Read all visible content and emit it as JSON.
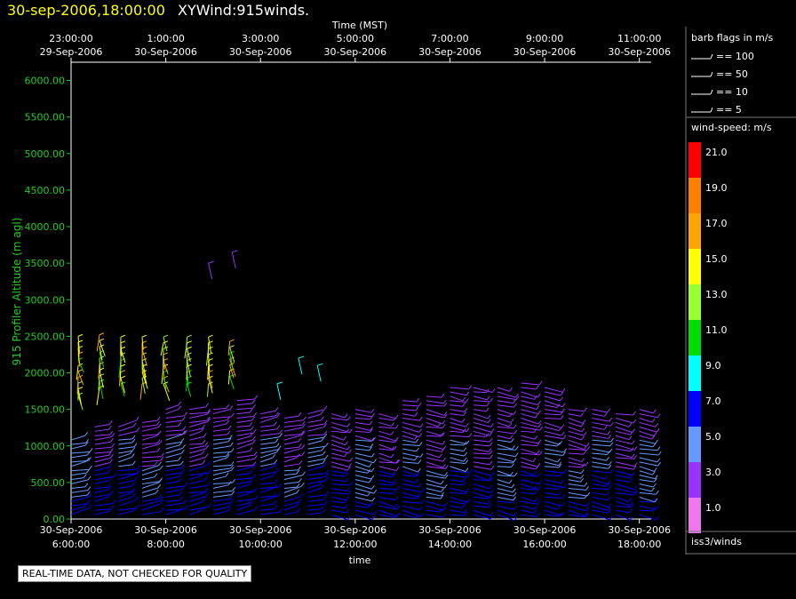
{
  "header": {
    "date": "30-sep-2006,18:00:00",
    "name": "XYWind:915winds."
  },
  "notice": "REAL-TIME DATA, NOT CHECKED FOR QUALITY",
  "legend": {
    "barb_title": "barb flags in m/s",
    "barbs": [
      "== 100",
      "== 50",
      "== 10",
      "== 5"
    ],
    "speed_title": "wind-speed: m/s",
    "speed_scale": [
      {
        "value": "21.0",
        "color": "#ff0000"
      },
      {
        "value": "19.0",
        "color": "#ff7f00"
      },
      {
        "value": "17.0",
        "color": "#ffa500"
      },
      {
        "value": "15.0",
        "color": "#ffff00"
      },
      {
        "value": "13.0",
        "color": "#99ff33"
      },
      {
        "value": "11.0",
        "color": "#00dd00"
      },
      {
        "value": "9.0",
        "color": "#00ffff"
      },
      {
        "value": "7.0",
        "color": "#0000ff"
      },
      {
        "value": "5.0",
        "color": "#6699ff"
      },
      {
        "value": "3.0",
        "color": "#9933ff"
      },
      {
        "value": "1.0",
        "color": "#ee77ee"
      }
    ],
    "source": "iss3/winds"
  },
  "chart_data": {
    "type": "scatter",
    "title": "XYWind:915winds.",
    "xlabel": "time",
    "xlabel_top": "Time (MST)",
    "ylabel": "915 Profiler Altitude (m agl)",
    "ylim": [
      0,
      6250
    ],
    "yticks": [
      "0.00",
      "500.00",
      "1000.00",
      "1500.00",
      "2000.00",
      "2500.00",
      "3000.00",
      "3500.00",
      "4000.00",
      "4500.00",
      "5000.00",
      "5500.00",
      "6000.00"
    ],
    "xlim": [
      "30-Sep-2006 06:00",
      "30-Sep-2006 18:15"
    ],
    "xticks_bottom": [
      {
        "time": "6:00:00",
        "date": "30-Sep-2006"
      },
      {
        "time": "8:00:00",
        "date": "30-Sep-2006"
      },
      {
        "time": "10:00:00",
        "date": "30-Sep-2006"
      },
      {
        "time": "12:00:00",
        "date": "30-Sep-2006"
      },
      {
        "time": "14:00:00",
        "date": "30-Sep-2006"
      },
      {
        "time": "16:00:00",
        "date": "30-Sep-2006"
      },
      {
        "time": "18:00:00",
        "date": "30-Sep-2006"
      }
    ],
    "xticks_top": [
      {
        "time": "23:00:00",
        "date": "29-Sep-2006"
      },
      {
        "time": "1:00:00",
        "date": "30-Sep-2006"
      },
      {
        "time": "3:00:00",
        "date": "30-Sep-2006"
      },
      {
        "time": "5:00:00",
        "date": "30-Sep-2006"
      },
      {
        "time": "7:00:00",
        "date": "30-Sep-2006"
      },
      {
        "time": "9:00:00",
        "date": "30-Sep-2006"
      },
      {
        "time": "11:00:00",
        "date": "30-Sep-2006"
      }
    ],
    "profile_hours": [
      6.0,
      6.5,
      7.0,
      7.5,
      8.0,
      8.5,
      9.0,
      9.5,
      10.0,
      10.5,
      11.0,
      11.5,
      12.0,
      12.5,
      13.0,
      13.5,
      14.0,
      14.5,
      15.0,
      15.5,
      16.0,
      16.5,
      17.0,
      17.5,
      18.0
    ],
    "profile_top_m": [
      1100,
      1300,
      1300,
      1350,
      1500,
      1550,
      1550,
      1650,
      1450,
      1400,
      1450,
      1450,
      1550,
      1450,
      1650,
      1700,
      1800,
      1800,
      1850,
      1900,
      1800,
      1550,
      1500,
      1450,
      1500
    ],
    "upper_layer": {
      "hours": [
        6.15,
        6.6,
        7.05,
        7.5,
        7.95,
        8.45,
        8.9,
        9.35
      ],
      "bottom_m": [
        1700,
        1800,
        1850,
        1850,
        1850,
        1850,
        1850,
        1950
      ],
      "top_m": [
        2550,
        2550,
        2500,
        2500,
        2550,
        2500,
        2550,
        2450
      ]
    },
    "sparse_barbs": [
      {
        "hour": 8.9,
        "alt_m": 3500
      },
      {
        "hour": 9.4,
        "alt_m": 3650
      },
      {
        "hour": 10.35,
        "alt_m": 1850
      },
      {
        "hour": 10.8,
        "alt_m": 2200
      },
      {
        "hour": 11.2,
        "alt_m": 2100
      }
    ]
  }
}
